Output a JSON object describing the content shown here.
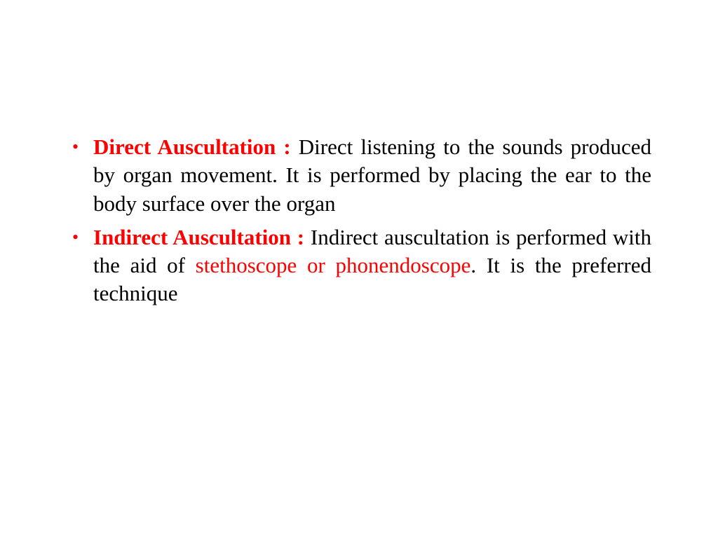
{
  "slide": {
    "background_color": "#ffffff",
    "text_color": "#000000",
    "accent_color": "#ff0000",
    "font_family": "Times New Roman",
    "font_size": 31,
    "items": [
      {
        "term": "Direct Auscultation : ",
        "definition_before": "Direct listening to the sounds produced by organ movement. It is performed by placing the ear to the body surface over the organ",
        "highlighted_text": "",
        "definition_after": ""
      },
      {
        "term": "Indirect Auscultation : ",
        "definition_before": "Indirect auscultation is performed with the aid of ",
        "highlighted_text": "stethoscope or phonendoscope",
        "definition_after": ". It is the preferred technique"
      }
    ]
  }
}
